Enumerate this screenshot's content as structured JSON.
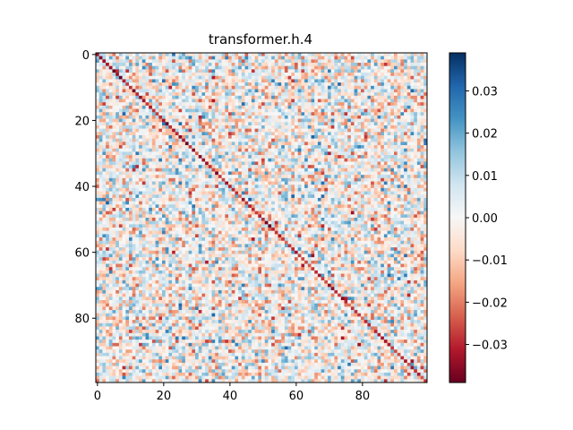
{
  "chart_data": {
    "type": "heatmap",
    "title": "transformer.h.4",
    "xlabel": "",
    "ylabel": "",
    "rows": 100,
    "cols": 100,
    "x_ticks": [
      0,
      20,
      40,
      60,
      80
    ],
    "y_ticks": [
      0,
      20,
      40,
      60,
      80
    ],
    "colormap": "RdBu",
    "colorbar": {
      "vmin": -0.039,
      "vmax": 0.039,
      "ticks": [
        -0.03,
        -0.02,
        -0.01,
        0.0,
        0.01,
        0.02,
        0.03
      ],
      "tick_labels": [
        "−0.03",
        "−0.02",
        "−0.01",
        "0.00",
        "0.01",
        "0.02",
        "0.03"
      ]
    },
    "diagonal_pattern": {
      "description": "negative-valued diagonal bands",
      "bands": [
        {
          "row_start": 0,
          "col_start": 0,
          "row_end": 28,
          "col_end": 28,
          "value": -0.032
        },
        {
          "row_start": 28,
          "col_start": 28,
          "row_end": 55,
          "col_end": 55,
          "value": -0.03
        },
        {
          "row_start": 55,
          "col_start": 55,
          "row_end": 99,
          "col_end": 99,
          "value": -0.028
        }
      ]
    }
  }
}
